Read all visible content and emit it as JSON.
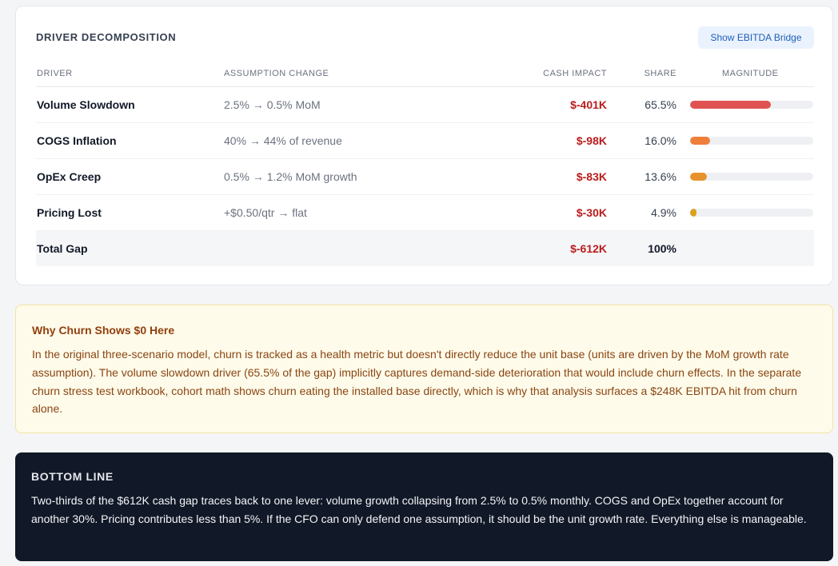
{
  "decomposition": {
    "title": "DRIVER DECOMPOSITION",
    "bridge_button": "Show EBITDA Bridge",
    "columns": {
      "driver": "DRIVER",
      "assumption": "ASSUMPTION CHANGE",
      "cash": "CASH IMPACT",
      "share": "SHARE",
      "magnitude": "MAGNITUDE"
    },
    "rows": [
      {
        "driver": "Volume Slowdown",
        "assumption": "2.5% → 0.5% MoM",
        "cash": "$-401K",
        "share": "65.5%",
        "magnitude": 0.655,
        "color": "#e05252"
      },
      {
        "driver": "COGS Inflation",
        "assumption": "40% → 44% of revenue",
        "cash": "$-98K",
        "share": "16.0%",
        "magnitude": 0.16,
        "color": "#ee7f3b"
      },
      {
        "driver": "OpEx Creep",
        "assumption": "0.5% → 1.2% MoM growth",
        "cash": "$-83K",
        "share": "13.6%",
        "magnitude": 0.136,
        "color": "#e8922e"
      },
      {
        "driver": "Pricing Lost",
        "assumption": "+$0.50/qtr → flat",
        "cash": "$-30K",
        "share": "4.9%",
        "magnitude": 0.049,
        "color": "#dba21f"
      }
    ],
    "total": {
      "driver": "Total Gap",
      "cash": "$-612K",
      "share": "100%"
    }
  },
  "churn_note": {
    "title": "Why Churn Shows $0 Here",
    "body": "In the original three-scenario model, churn is tracked as a health metric but doesn't directly reduce the unit base (units are driven by the MoM growth rate assumption). The volume slowdown driver (65.5% of the gap) implicitly captures demand-side deterioration that would include churn effects. In the separate churn stress test workbook, cohort math shows churn eating the installed base directly, which is why that analysis surfaces a $248K EBITDA hit from churn alone."
  },
  "bottom_line": {
    "title": "BOTTOM LINE",
    "body": "Two-thirds of the $612K cash gap traces back to one lever: volume growth collapsing from 2.5% to 0.5% monthly. COGS and OpEx together account for another 30%. Pricing contributes less than 5%. If the CFO can only defend one assumption, it should be the unit growth rate. Everything else is manageable."
  }
}
